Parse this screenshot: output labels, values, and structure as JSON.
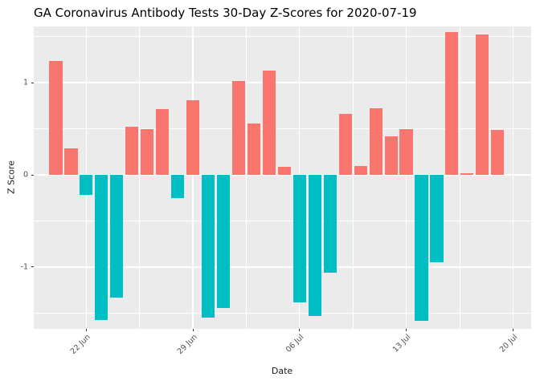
{
  "chart_data": {
    "type": "bar",
    "title": "GA Coronavirus Antibody Tests 30-Day Z-Scores for 2020-07-19",
    "xlabel": "Date",
    "ylabel": "Z Score",
    "categories": [
      "2020-06-20",
      "2020-06-21",
      "2020-06-22",
      "2020-06-23",
      "2020-06-24",
      "2020-06-25",
      "2020-06-26",
      "2020-06-27",
      "2020-06-28",
      "2020-06-29",
      "2020-06-30",
      "2020-07-01",
      "2020-07-02",
      "2020-07-03",
      "2020-07-04",
      "2020-07-05",
      "2020-07-06",
      "2020-07-07",
      "2020-07-08",
      "2020-07-09",
      "2020-07-10",
      "2020-07-11",
      "2020-07-12",
      "2020-07-13",
      "2020-07-14",
      "2020-07-15",
      "2020-07-16",
      "2020-07-17",
      "2020-07-18",
      "2020-07-19"
    ],
    "values": [
      1.24,
      0.29,
      -0.22,
      -1.57,
      -1.33,
      0.52,
      0.5,
      0.71,
      -0.25,
      0.81,
      -1.55,
      -1.44,
      1.02,
      0.56,
      1.13,
      0.09,
      -1.38,
      -1.53,
      -1.06,
      0.66,
      0.1,
      0.72,
      0.42,
      0.5,
      -1.58,
      -0.95,
      1.55,
      0.02,
      1.52,
      0.49
    ],
    "bar_colors": {
      "positive": "#F8766D",
      "negative": "#00BFC4"
    },
    "panel_background": "#EBEBEB",
    "gridline_color": "#FFFFFF",
    "x_tick_labels": [
      "22 Jun",
      "29 Jun",
      "06 Jul",
      "13 Jul",
      "20 Jul"
    ],
    "x_tick_days": [
      2,
      9,
      16,
      23,
      30
    ],
    "x_minor_days": [
      5.5,
      12.5,
      19.5,
      26.5
    ],
    "y_tick_labels": [
      "1",
      "0",
      "-1"
    ],
    "y_tick_values": [
      1,
      0,
      -1
    ],
    "y_minor_values": [
      1.5,
      0.5,
      -0.5,
      -1.5
    ],
    "ylim": [
      -1.67,
      1.61
    ],
    "xlim_days": [
      -1.45,
      31.2
    ],
    "grid": true,
    "legend": false
  }
}
